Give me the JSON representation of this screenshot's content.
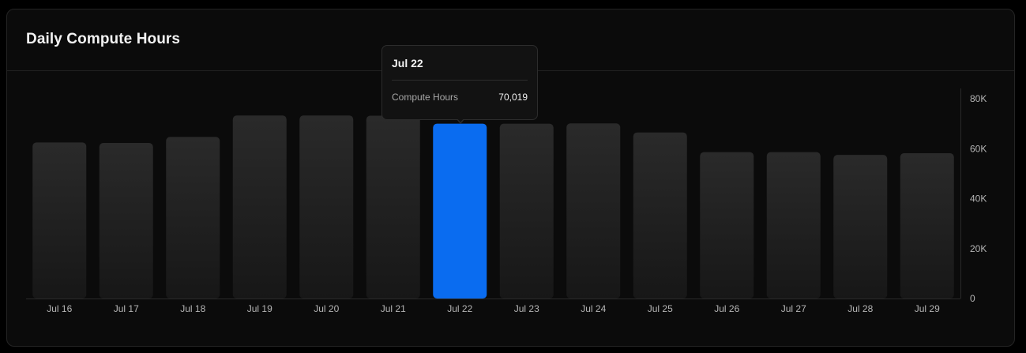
{
  "card": {
    "title": "Daily Compute Hours"
  },
  "tooltip": {
    "date": "Jul 22",
    "label": "Compute Hours",
    "value": "70,019"
  },
  "colors": {
    "bar_top": "#2a2a2a",
    "bar_bottom": "#171717",
    "highlight": "#0a6cf0",
    "tick_label": "#b5b5b5",
    "axis_line": "#2a2a2a"
  },
  "chart_data": {
    "type": "bar",
    "title": "Daily Compute Hours",
    "xlabel": "",
    "ylabel": "",
    "categories": [
      "Jul 16",
      "Jul 17",
      "Jul 18",
      "Jul 19",
      "Jul 20",
      "Jul 21",
      "Jul 22",
      "Jul 23",
      "Jul 24",
      "Jul 25",
      "Jul 26",
      "Jul 27",
      "Jul 28",
      "Jul 29"
    ],
    "values": [
      62500,
      62300,
      64700,
      73300,
      73300,
      73200,
      70019,
      70000,
      70100,
      66500,
      58600,
      58600,
      57500,
      58200
    ],
    "highlighted_category": "Jul 22",
    "ylim": [
      0,
      80000
    ],
    "yticks": [
      0,
      20000,
      40000,
      60000,
      80000
    ],
    "ytick_labels": [
      "0",
      "20K",
      "40K",
      "60K",
      "80K"
    ],
    "y_axis_position": "right",
    "grid": false,
    "legend": "none"
  }
}
